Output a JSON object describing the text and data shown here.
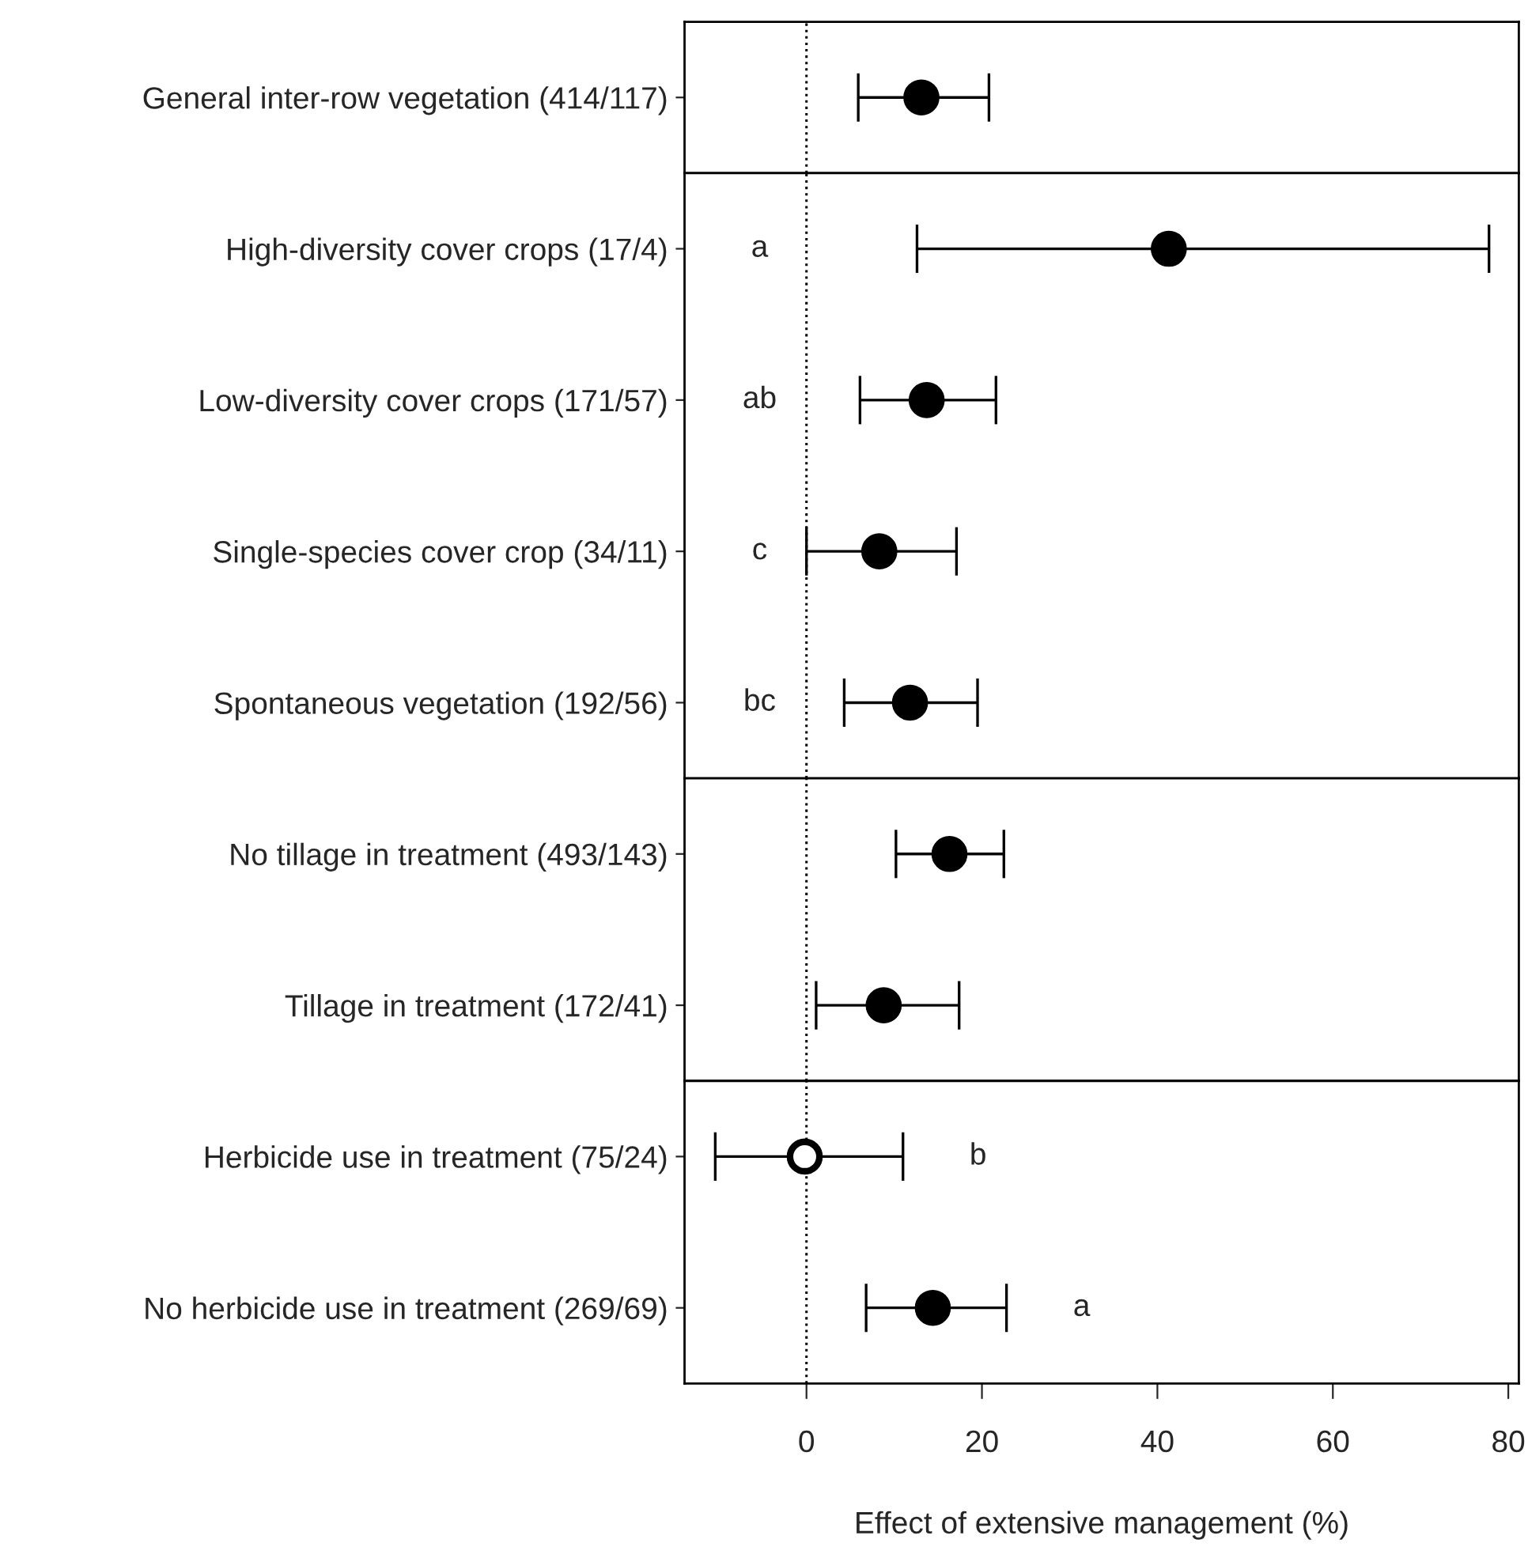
{
  "chart_data": [
    {
      "type": "scatter",
      "orientation": "horizontal",
      "categories": [
        "General inter-row vegetation (414/117)"
      ],
      "values": [
        13.1
      ],
      "errors": [
        [
          5.9,
          20.8
        ]
      ],
      "colors": [
        "#000000"
      ],
      "marker": "circle",
      "xlim": [
        -13.9,
        81.2
      ],
      "xticks": [
        0,
        20,
        40,
        60,
        80
      ],
      "tick_labels": "y",
      "grid": false,
      "legend": false,
      "ref_lines": [
        {
          "axis": "x",
          "value": 0,
          "line_style": "dotted",
          "color": "#000000"
        }
      ]
    },
    {
      "type": "scatter",
      "orientation": "horizontal",
      "categories": [
        "High-diversity cover crops (17/4)",
        "Low-diversity cover crops (171/57)",
        "Single-species cover crop (34/11)",
        "Spontaneous vegetation (192/56)"
      ],
      "values": [
        41.3,
        13.7,
        8.3,
        11.8
      ],
      "errors": [
        [
          12.6,
          77.8
        ],
        [
          6.1,
          21.6
        ],
        [
          0,
          17.1
        ],
        [
          4.3,
          19.5
        ]
      ],
      "colors": [
        "#000000",
        "#000000",
        "#000000",
        "#000000"
      ],
      "marker": "circle",
      "xlim": [
        -13.9,
        81.2
      ],
      "xticks": [
        0,
        20,
        40,
        60,
        80
      ],
      "tick_labels": "y",
      "grid": false,
      "legend": false,
      "ref_lines": [
        {
          "axis": "x",
          "value": 0,
          "line_style": "dotted",
          "color": "#000000"
        }
      ],
      "annotations": [
        "a",
        "ab",
        "c",
        "bc"
      ]
    },
    {
      "type": "scatter",
      "orientation": "horizontal",
      "categories": [
        "No tillage in treatment (493/143)",
        "Tillage in treatment (172/41)"
      ],
      "values": [
        16.3,
        8.8
      ],
      "errors": [
        [
          10.2,
          22.5
        ],
        [
          1.1,
          17.4
        ]
      ],
      "colors": [
        "#000000",
        "#000000"
      ],
      "marker": "circle",
      "xlim": [
        -13.9,
        81.2
      ],
      "xticks": [
        0,
        20,
        40,
        60,
        80
      ],
      "tick_labels": "y",
      "grid": false,
      "legend": false,
      "ref_lines": [
        {
          "axis": "x",
          "value": 0,
          "line_style": "dotted",
          "color": "#000000"
        }
      ]
    },
    {
      "type": "scatter",
      "orientation": "horizontal",
      "categories": [
        "Herbicide use in treatment (75/24)",
        "No herbicide use in treatment (269/69)"
      ],
      "values": [
        -0.2,
        14.4
      ],
      "errors": [
        [
          -10.4,
          11.0
        ],
        [
          6.8,
          22.8
        ]
      ],
      "colors": [
        "#ffffff",
        "#000000"
      ],
      "marker": "circle",
      "xlim": [
        -13.9,
        81.2
      ],
      "xticks": [
        0,
        20,
        40,
        60,
        80
      ],
      "grid": false,
      "legend": false,
      "xlabel": "Effect of extensive management (%)",
      "ref_lines": [
        {
          "axis": "x",
          "value": 0,
          "line_style": "dotted",
          "color": "#000000"
        }
      ],
      "annotations": [
        "b",
        "a"
      ]
    }
  ]
}
